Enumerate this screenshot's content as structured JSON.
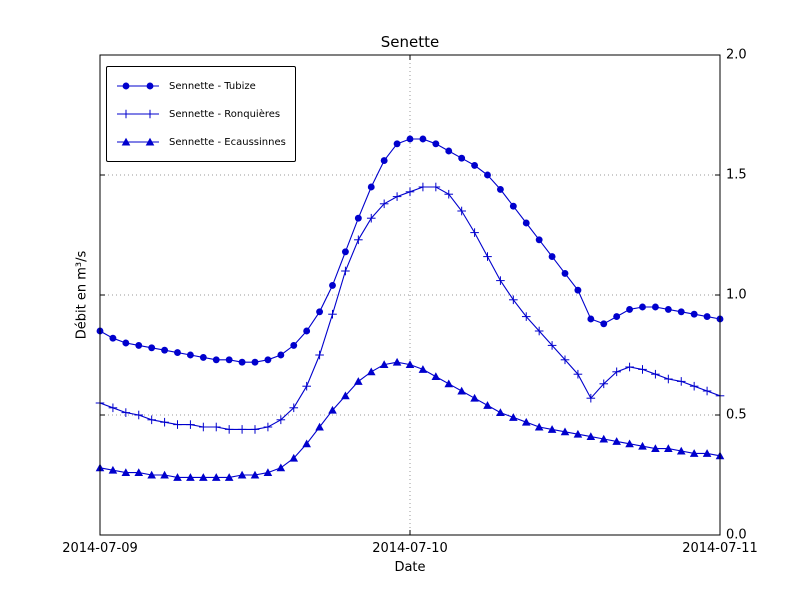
{
  "figure": {
    "title": "Senette",
    "xlabel": "Date",
    "ylabel": "Débit en m³/s"
  },
  "colors": {
    "series": "#0000cd",
    "grid": "#999999",
    "frame": "#000000"
  },
  "legend": {
    "items": [
      {
        "label": "Sennette - Tubize",
        "marker": "circle"
      },
      {
        "label": "Sennette - Ronquières",
        "marker": "plus"
      },
      {
        "label": "Sennette - Ecaussinnes",
        "marker": "triangle"
      }
    ]
  },
  "chart_data": {
    "type": "line",
    "title": "Senette",
    "xlabel": "Date",
    "ylabel": "Débit en m³/s",
    "x_unit": "hours since 2014-07-09 00:00",
    "xlim_hours": [
      0,
      48
    ],
    "ylim": [
      0.0,
      2.0
    ],
    "grid": "dotted",
    "legend_position": "upper left",
    "x_tick_positions_hours": [
      0,
      24,
      48
    ],
    "x_tick_labels": [
      "2014-07-09",
      "2014-07-10",
      "2014-07-11"
    ],
    "y_ticks": [
      0.0,
      0.5,
      1.0,
      1.5,
      2.0
    ],
    "y_tick_labels": [
      "0.0",
      "0.5",
      "1.0",
      "1.5",
      "2.0"
    ],
    "x": [
      0,
      1,
      2,
      3,
      4,
      5,
      6,
      7,
      8,
      9,
      10,
      11,
      12,
      13,
      14,
      15,
      16,
      17,
      18,
      19,
      20,
      21,
      22,
      23,
      24,
      25,
      26,
      27,
      28,
      29,
      30,
      31,
      32,
      33,
      34,
      35,
      36,
      37,
      38,
      39,
      40,
      41,
      42,
      43,
      44,
      45,
      46,
      47,
      48
    ],
    "series": [
      {
        "name": "Sennette - Tubize",
        "marker": "circle",
        "values": [
          0.85,
          0.82,
          0.8,
          0.79,
          0.78,
          0.77,
          0.76,
          0.75,
          0.74,
          0.73,
          0.73,
          0.72,
          0.72,
          0.73,
          0.75,
          0.79,
          0.85,
          0.93,
          1.04,
          1.18,
          1.32,
          1.45,
          1.56,
          1.63,
          1.65,
          1.65,
          1.63,
          1.6,
          1.57,
          1.54,
          1.5,
          1.44,
          1.37,
          1.3,
          1.23,
          1.16,
          1.09,
          1.02,
          0.9,
          0.88,
          0.91,
          0.94,
          0.95,
          0.95,
          0.94,
          0.93,
          0.92,
          0.91,
          0.9
        ]
      },
      {
        "name": "Sennette - Ronquières",
        "marker": "plus",
        "values": [
          0.55,
          0.53,
          0.51,
          0.5,
          0.48,
          0.47,
          0.46,
          0.46,
          0.45,
          0.45,
          0.44,
          0.44,
          0.44,
          0.45,
          0.48,
          0.53,
          0.62,
          0.75,
          0.92,
          1.1,
          1.23,
          1.32,
          1.38,
          1.41,
          1.43,
          1.45,
          1.45,
          1.42,
          1.35,
          1.26,
          1.16,
          1.06,
          0.98,
          0.91,
          0.85,
          0.79,
          0.73,
          0.67,
          0.57,
          0.63,
          0.68,
          0.7,
          0.69,
          0.67,
          0.65,
          0.64,
          0.62,
          0.6,
          0.58
        ]
      },
      {
        "name": "Sennette - Ecaussinnes",
        "marker": "triangle",
        "values": [
          0.28,
          0.27,
          0.26,
          0.26,
          0.25,
          0.25,
          0.24,
          0.24,
          0.24,
          0.24,
          0.24,
          0.25,
          0.25,
          0.26,
          0.28,
          0.32,
          0.38,
          0.45,
          0.52,
          0.58,
          0.64,
          0.68,
          0.71,
          0.72,
          0.71,
          0.69,
          0.66,
          0.63,
          0.6,
          0.57,
          0.54,
          0.51,
          0.49,
          0.47,
          0.45,
          0.44,
          0.43,
          0.42,
          0.41,
          0.4,
          0.39,
          0.38,
          0.37,
          0.36,
          0.36,
          0.35,
          0.34,
          0.34,
          0.33
        ]
      }
    ]
  }
}
